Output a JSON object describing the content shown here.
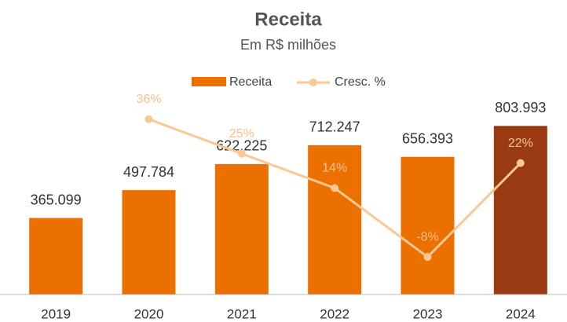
{
  "chart_data": {
    "type": "bar_line",
    "title": "Receita",
    "subtitle": "Em R$ milhões",
    "categories": [
      "2019",
      "2020",
      "2021",
      "2022",
      "2023",
      "2024"
    ],
    "series": [
      {
        "name": "Receita",
        "type": "bar",
        "colors": [
          "#ec7000",
          "#ec7000",
          "#ec7000",
          "#ec7000",
          "#ec7000",
          "#993a12"
        ],
        "values": [
          365.099,
          497.784,
          622.225,
          712.247,
          656.393,
          803.993
        ]
      },
      {
        "name": "Cresc. %",
        "type": "line",
        "axis": "y2",
        "color": "#fbc894",
        "label_color": "#f8c090",
        "values": [
          null,
          36,
          25,
          14,
          -8,
          22
        ],
        "value_labels": [
          null,
          "36%",
          "25%",
          "14%",
          "-8%",
          "22%"
        ]
      }
    ],
    "ylim": [
      0,
      1000
    ],
    "y2lim": [
      -20,
      47
    ],
    "legend": "top"
  }
}
